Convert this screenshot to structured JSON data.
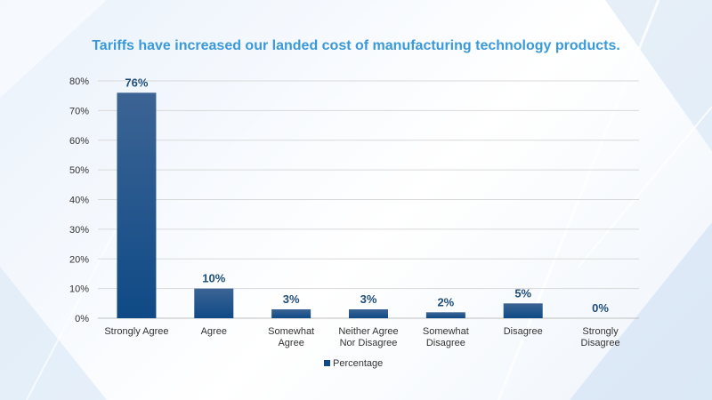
{
  "chart_data": {
    "type": "bar",
    "title": "Tariffs have increased our landed cost of manufacturing technology products.",
    "categories": [
      [
        "Strongly Agree"
      ],
      [
        "Agree"
      ],
      [
        "Somewhat",
        "Agree"
      ],
      [
        "Neither Agree",
        "Nor Disagree"
      ],
      [
        "Somewhat",
        "Disagree"
      ],
      [
        "Disagree"
      ],
      [
        "Strongly",
        "Disagree"
      ]
    ],
    "series": [
      {
        "name": "Percentage",
        "values": [
          76,
          10,
          3,
          3,
          2,
          5,
          0
        ]
      }
    ],
    "data_labels": [
      "76%",
      "10%",
      "3%",
      "3%",
      "2%",
      "5%",
      "0%"
    ],
    "ylim": [
      0,
      80
    ],
    "yticks": [
      0,
      10,
      20,
      30,
      40,
      50,
      60,
      70,
      80
    ],
    "ytick_labels": [
      "0%",
      "10%",
      "20%",
      "30%",
      "40%",
      "50%",
      "60%",
      "70%",
      "80%"
    ],
    "grid": true,
    "legend": "bottom-center",
    "colors": {
      "bar_top": "#3c6494",
      "bar_bottom": "#0f4a86",
      "label": "#1f4e79",
      "title": "#3a9ad9"
    }
  }
}
